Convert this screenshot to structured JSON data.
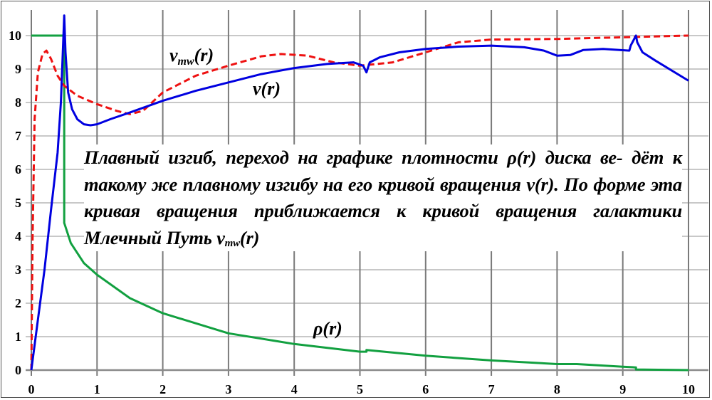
{
  "chart_data": {
    "type": "line",
    "title": "",
    "xlabel": "",
    "ylabel": "",
    "xlim": [
      0,
      10
    ],
    "ylim": [
      0,
      10.6
    ],
    "x_ticks": [
      "0",
      "1",
      "2",
      "3",
      "4",
      "5",
      "6",
      "7",
      "8",
      "9",
      "10"
    ],
    "y_ticks": [
      "0",
      "1",
      "2",
      "3",
      "4",
      "5",
      "6",
      "7",
      "8",
      "9",
      "10"
    ],
    "grid": true,
    "series": [
      {
        "name": "v(r)",
        "label_main": "v",
        "label_sub": "",
        "label_arg": "(r)",
        "color": "#0000e0",
        "style": "solid",
        "points": [
          [
            0,
            0
          ],
          [
            0.1,
            1.5
          ],
          [
            0.2,
            3
          ],
          [
            0.3,
            4.8
          ],
          [
            0.4,
            6.5
          ],
          [
            0.45,
            8
          ],
          [
            0.5,
            10.6
          ],
          [
            0.52,
            9.5
          ],
          [
            0.56,
            8.3
          ],
          [
            0.62,
            7.8
          ],
          [
            0.7,
            7.5
          ],
          [
            0.8,
            7.35
          ],
          [
            0.9,
            7.32
          ],
          [
            1.0,
            7.35
          ],
          [
            1.2,
            7.5
          ],
          [
            1.5,
            7.7
          ],
          [
            2,
            8.05
          ],
          [
            2.5,
            8.35
          ],
          [
            3,
            8.6
          ],
          [
            3.5,
            8.85
          ],
          [
            4,
            9.03
          ],
          [
            4.5,
            9.15
          ],
          [
            4.9,
            9.2
          ],
          [
            5.05,
            9.1
          ],
          [
            5.1,
            8.9
          ],
          [
            5.15,
            9.2
          ],
          [
            5.3,
            9.35
          ],
          [
            5.6,
            9.5
          ],
          [
            6,
            9.6
          ],
          [
            6.5,
            9.67
          ],
          [
            7,
            9.7
          ],
          [
            7.5,
            9.65
          ],
          [
            7.8,
            9.55
          ],
          [
            8.0,
            9.4
          ],
          [
            8.2,
            9.42
          ],
          [
            8.4,
            9.57
          ],
          [
            8.7,
            9.6
          ],
          [
            9.1,
            9.55
          ],
          [
            9.12,
            9.7
          ],
          [
            9.2,
            10.0
          ],
          [
            9.22,
            9.8
          ],
          [
            9.3,
            9.5
          ],
          [
            9.5,
            9.25
          ],
          [
            10,
            8.65
          ]
        ]
      },
      {
        "name": "vmw(r)",
        "label_main": "v",
        "label_sub": "mw",
        "label_arg": "(r)",
        "color": "#ee1111",
        "style": "dashed",
        "points": [
          [
            0,
            0
          ],
          [
            0.02,
            4
          ],
          [
            0.05,
            7.5
          ],
          [
            0.1,
            8.9
          ],
          [
            0.17,
            9.45
          ],
          [
            0.23,
            9.55
          ],
          [
            0.3,
            9.3
          ],
          [
            0.4,
            8.8
          ],
          [
            0.5,
            8.5
          ],
          [
            0.7,
            8.2
          ],
          [
            1,
            7.95
          ],
          [
            1.3,
            7.75
          ],
          [
            1.5,
            7.65
          ],
          [
            1.7,
            7.75
          ],
          [
            2,
            8.3
          ],
          [
            2.5,
            8.8
          ],
          [
            3,
            9.1
          ],
          [
            3.5,
            9.38
          ],
          [
            3.8,
            9.45
          ],
          [
            4.2,
            9.4
          ],
          [
            4.6,
            9.2
          ],
          [
            5,
            9.1
          ],
          [
            5.5,
            9.2
          ],
          [
            6,
            9.5
          ],
          [
            6.5,
            9.8
          ],
          [
            7,
            9.88
          ],
          [
            8,
            9.9
          ],
          [
            9,
            9.95
          ],
          [
            10,
            10
          ]
        ]
      },
      {
        "name": "ρ(r)",
        "label_main": "ρ",
        "label_sub": "",
        "label_arg": "(r)",
        "color": "#12a040",
        "style": "solid",
        "points": [
          [
            0,
            10
          ],
          [
            0.5,
            10
          ],
          [
            0.5,
            4.4
          ],
          [
            0.6,
            3.8
          ],
          [
            0.8,
            3.2
          ],
          [
            1,
            2.85
          ],
          [
            1.5,
            2.15
          ],
          [
            2,
            1.7
          ],
          [
            3,
            1.1
          ],
          [
            4,
            0.78
          ],
          [
            5,
            0.55
          ],
          [
            5.1,
            0.55
          ],
          [
            5.1,
            0.6
          ],
          [
            6,
            0.43
          ],
          [
            7,
            0.29
          ],
          [
            8,
            0.18
          ],
          [
            8.3,
            0.18
          ],
          [
            9,
            0.1
          ],
          [
            9.2,
            0.08
          ],
          [
            9.2,
            0.02
          ],
          [
            10,
            0
          ]
        ]
      }
    ],
    "annotation": {
      "line1": "Плавный изгиб, переход на графике плотности ρ(r) диска ве-",
      "line2": "дёт к  такому же плавному изгибу на его кривой вращения",
      "line3": "v(r).  По форме эта кривая вращения приближается к кривой",
      "line4_pre": "вращения галактики Млечный Путь v",
      "line4_sub": "mw",
      "line4_post": "(r)"
    }
  }
}
